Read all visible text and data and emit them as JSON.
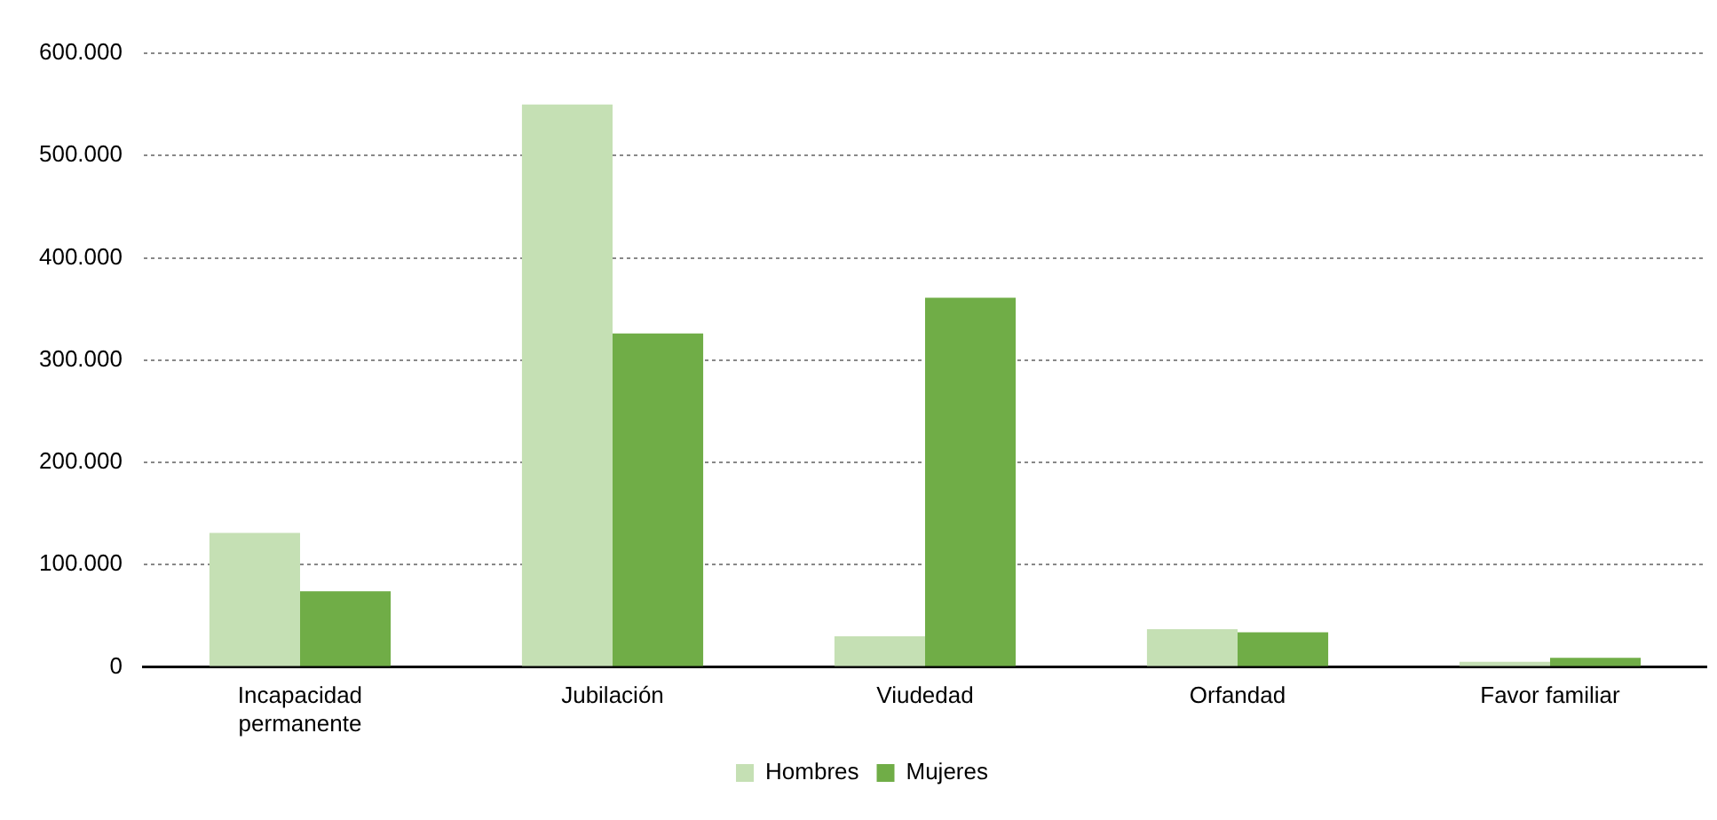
{
  "chart_data": {
    "type": "bar",
    "categories": [
      [
        "Incapacidad",
        "permanente"
      ],
      "Jubilación",
      "Viudedad",
      "Orfandad",
      "Favor familiar"
    ],
    "series": [
      {
        "name": "Hombres",
        "color": "#c5e0b4",
        "values": [
          131000,
          550000,
          30000,
          37000,
          5000
        ]
      },
      {
        "name": "Mujeres",
        "color": "#70ad47",
        "values": [
          74000,
          326000,
          361000,
          34000,
          9000
        ]
      }
    ],
    "ylim": [
      0,
      600000
    ],
    "yticks": [
      {
        "value": 0,
        "label": "0"
      },
      {
        "value": 100000,
        "label": "100.000"
      },
      {
        "value": 200000,
        "label": "200.000"
      },
      {
        "value": 300000,
        "label": "300.000"
      },
      {
        "value": 400000,
        "label": "400.000"
      },
      {
        "value": 500000,
        "label": "500.000"
      },
      {
        "value": 600000,
        "label": "600.000"
      }
    ],
    "grid": "y",
    "legend": "bottom"
  }
}
